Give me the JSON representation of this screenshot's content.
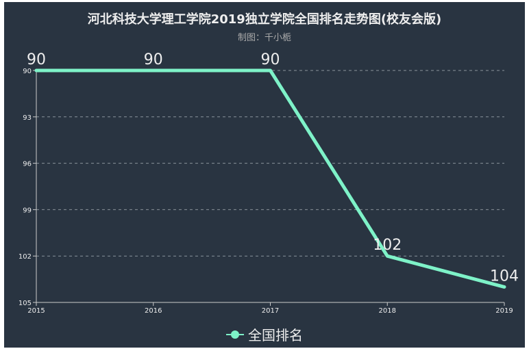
{
  "header": {
    "title": "河北科技大学理工学院2019独立学院全国排名走势图(校友会版)",
    "subtitle": "制图：千小栀"
  },
  "legend": {
    "label": "全国排名",
    "color": "#7ef2c8"
  },
  "colors": {
    "background": "#293441",
    "line": "#7ef2c8",
    "axis": "#cccccc",
    "grid": "#8a939c",
    "text": "#eeeeee"
  },
  "chart_data": {
    "type": "line",
    "title": "河北科技大学理工学院2019独立学院全国排名走势图(校友会版)",
    "subtitle": "制图：千小栀",
    "categories": [
      "2015",
      "2016",
      "2017",
      "2018",
      "2019"
    ],
    "series": [
      {
        "name": "全国排名",
        "values": [
          90,
          90,
          90,
          102,
          104
        ]
      }
    ],
    "xlabel": "",
    "ylabel": "",
    "ylim": [
      90,
      105
    ],
    "y_inverse": true,
    "yticks": [
      90,
      93,
      96,
      99,
      102,
      105
    ],
    "grid": true,
    "legend_position": "bottom"
  }
}
